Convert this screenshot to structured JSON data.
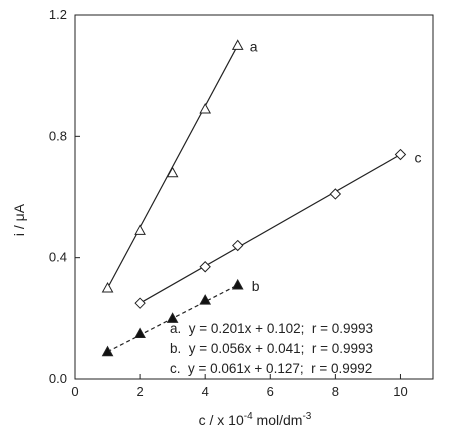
{
  "chart_data": {
    "type": "scatter",
    "xlabel_parts": {
      "pre": "c / x 10",
      "sup": "-4",
      "mid": " mol/dm",
      "sup2": "-3"
    },
    "ylabel": "i / μA",
    "xlim": [
      0,
      11
    ],
    "ylim": [
      0.0,
      1.2
    ],
    "xticks": [
      0,
      2,
      4,
      6,
      8,
      10
    ],
    "yticks": [
      0.0,
      0.4,
      0.8,
      1.2
    ],
    "xtick_labels": [
      "0",
      "2",
      "4",
      "6",
      "8",
      "10"
    ],
    "ytick_labels": [
      "0.0",
      "0.4",
      "0.8",
      "1.2"
    ],
    "grid": false,
    "series": [
      {
        "name": "a",
        "marker": "open-triangle",
        "line": "solid",
        "x": [
          1,
          2,
          3,
          4,
          5
        ],
        "y": [
          0.3,
          0.49,
          0.68,
          0.89,
          1.1
        ]
      },
      {
        "name": "b",
        "marker": "filled-triangle",
        "line": "dashed",
        "x": [
          1,
          2,
          3,
          4,
          5
        ],
        "y": [
          0.09,
          0.15,
          0.2,
          0.26,
          0.31
        ]
      },
      {
        "name": "c",
        "marker": "open-diamond",
        "line": "solid",
        "x": [
          2,
          4,
          5,
          8,
          10
        ],
        "y": [
          0.25,
          0.37,
          0.44,
          0.61,
          0.74
        ]
      }
    ],
    "equations": [
      "a.  y = 0.201x + 0.102;  r = 0.9993",
      "b.  y = 0.056x + 0.041;  r = 0.9993",
      "c.  y = 0.061x + 0.127;  r = 0.9992"
    ]
  }
}
